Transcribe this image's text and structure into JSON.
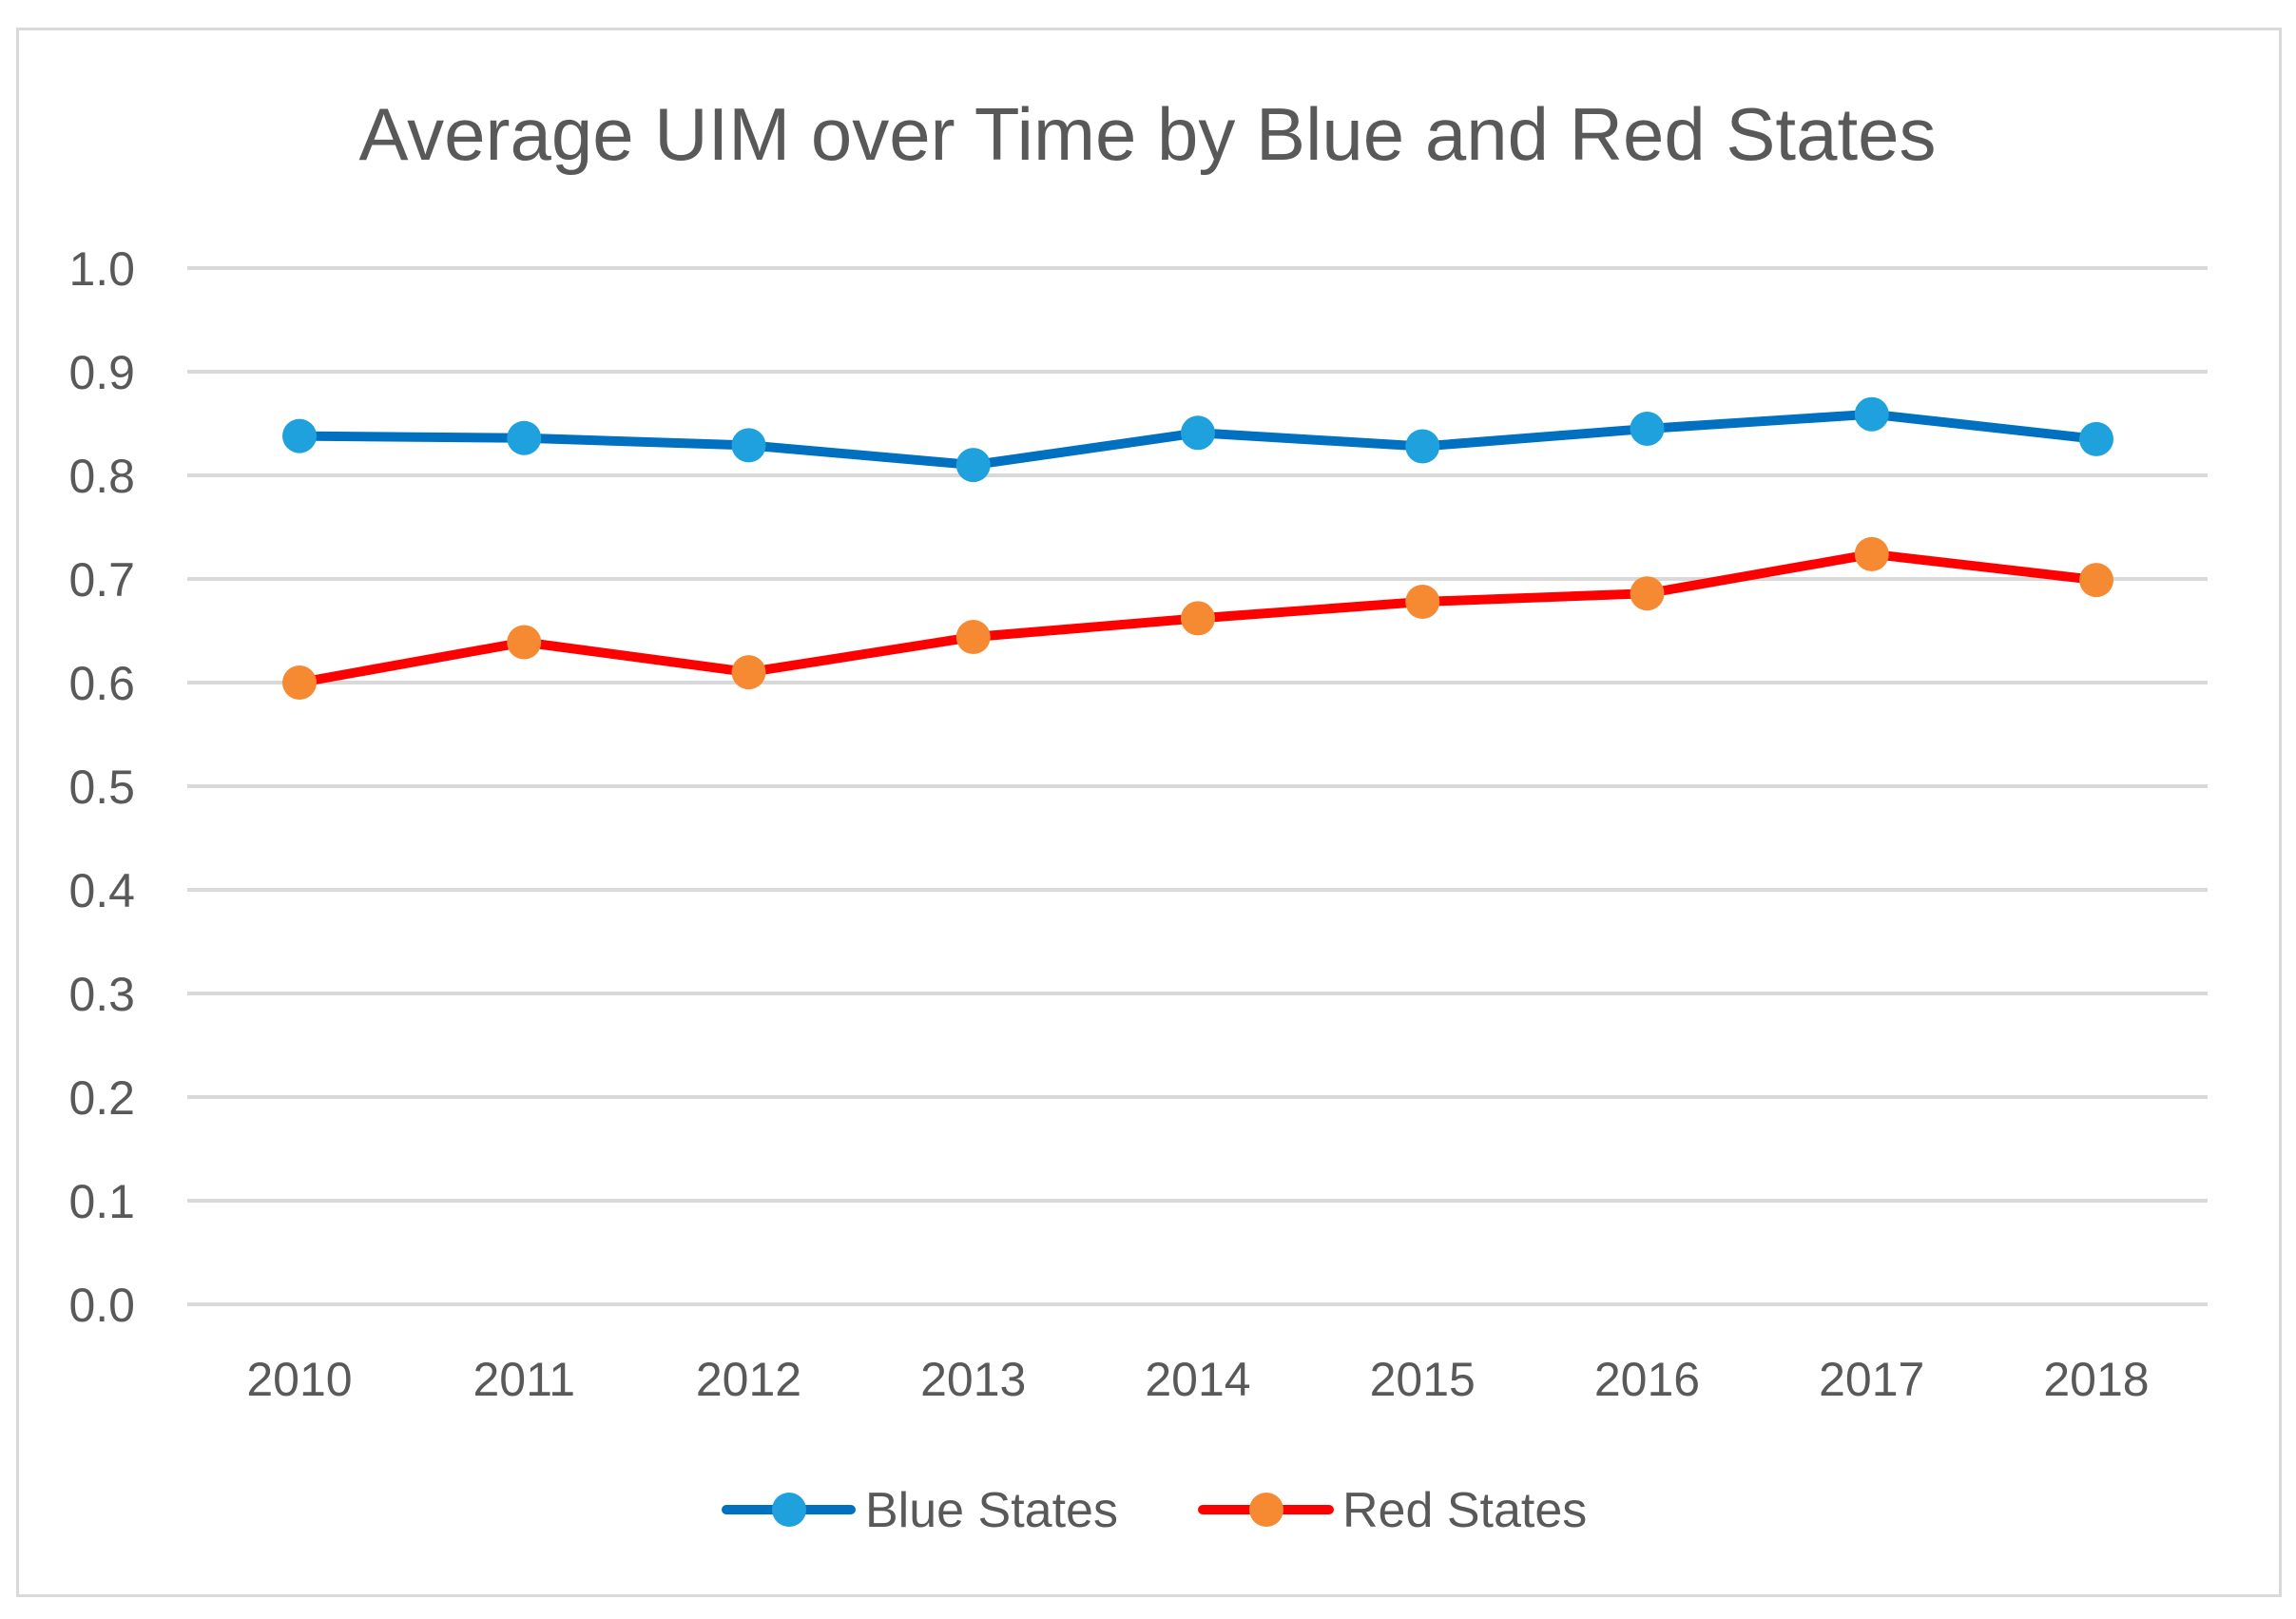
{
  "chart_data": {
    "type": "line",
    "title": "Average UIM over Time by Blue and Red States",
    "xlabel": "",
    "ylabel": "",
    "x": [
      "2010",
      "2011",
      "2012",
      "2013",
      "2014",
      "2015",
      "2016",
      "2017",
      "2018"
    ],
    "ylim": [
      0,
      1
    ],
    "yticks": [
      "0.0",
      "0.1",
      "0.2",
      "0.3",
      "0.4",
      "0.5",
      "0.6",
      "0.7",
      "0.8",
      "0.9",
      "1.0"
    ],
    "grid": true,
    "legend_position": "bottom",
    "series": [
      {
        "name": "Blue States",
        "line_color": "#0070c0",
        "marker_color": "#1ea1dc",
        "values": [
          0.838,
          0.836,
          0.829,
          0.81,
          0.841,
          0.828,
          0.845,
          0.859,
          0.835
        ]
      },
      {
        "name": "Red States",
        "line_color": "#ff0000",
        "marker_color": "#f58a33",
        "values": [
          0.6,
          0.639,
          0.61,
          0.644,
          0.662,
          0.678,
          0.686,
          0.724,
          0.699
        ]
      }
    ]
  }
}
